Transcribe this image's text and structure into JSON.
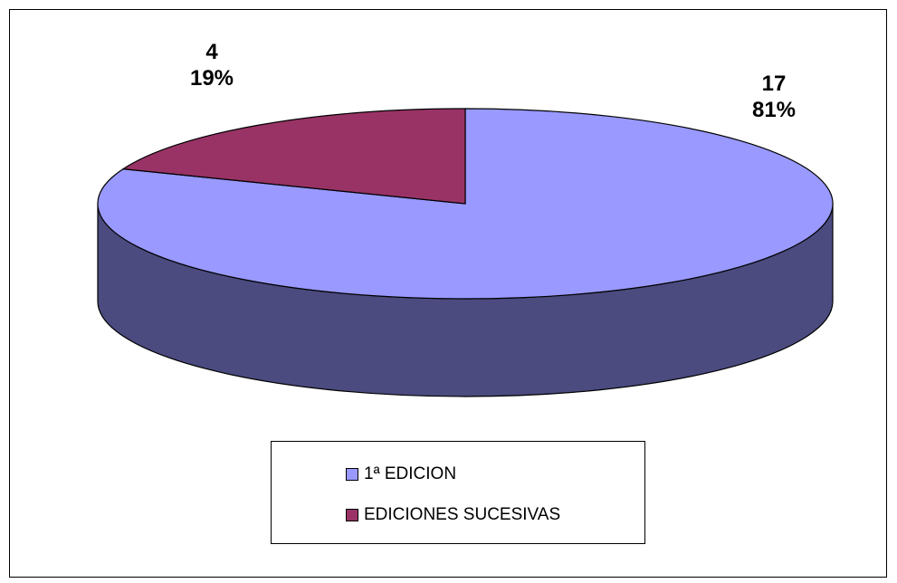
{
  "chart_data": {
    "type": "pie",
    "style": "3d",
    "slices": [
      {
        "label": "1ª EDICION",
        "value": 17,
        "percent": "81%",
        "color": "#9999FF",
        "side_color": "#4B4B80"
      },
      {
        "label": "EDICIONES SUCESIVAS",
        "value": 4,
        "percent": "19%",
        "color": "#993366",
        "side_color": "#4D1A33"
      }
    ],
    "legend_position": "bottom"
  },
  "labels": {
    "slice1_value": "17",
    "slice1_percent": "81%",
    "slice2_value": "4",
    "slice2_percent": "19%"
  },
  "legend": {
    "item1": "1ª EDICION",
    "item2": "EDICIONES SUCESIVAS"
  }
}
